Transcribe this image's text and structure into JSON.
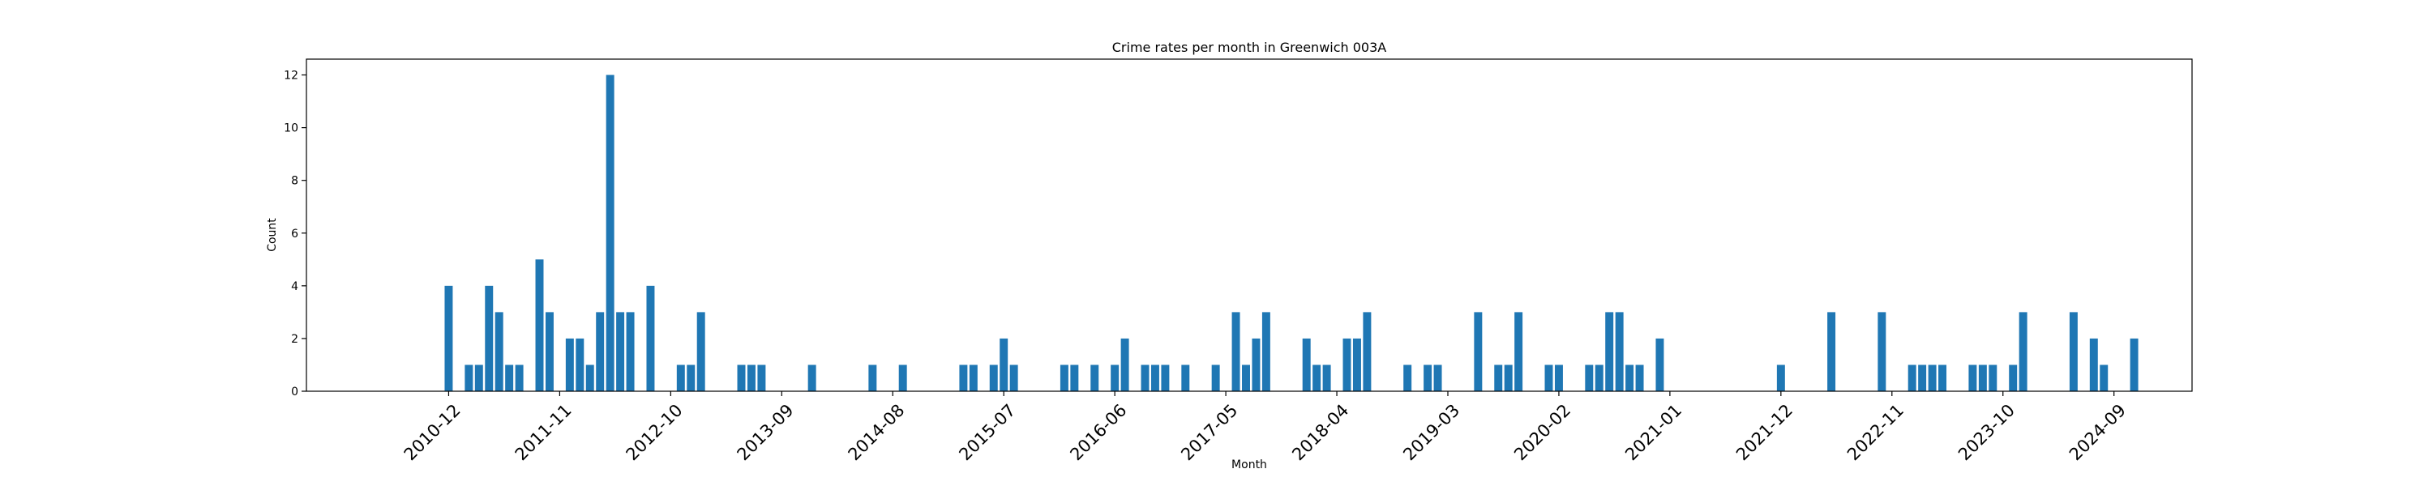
{
  "chart_data": {
    "type": "bar",
    "title": "Crime rates per month in Greenwich 003A",
    "xlabel": "Month",
    "ylabel": "Count",
    "ylim": [
      0,
      12.6
    ],
    "yticks": [
      0,
      2,
      4,
      6,
      8,
      10,
      12
    ],
    "xticks": [
      "2010-12",
      "2011-11",
      "2012-10",
      "2013-09",
      "2014-08",
      "2015-07",
      "2016-06",
      "2017-05",
      "2018-04",
      "2019-03",
      "2020-02",
      "2021-01",
      "2021-12",
      "2022-11",
      "2023-10",
      "2024-09"
    ],
    "bar_color": "#1f77b4",
    "grid": false,
    "series": [
      {
        "x": [
          "2010-12",
          "2011-02",
          "2011-03",
          "2011-04",
          "2011-05",
          "2011-06",
          "2011-07",
          "2011-09",
          "2011-10",
          "2011-12",
          "2012-01",
          "2012-02",
          "2012-03",
          "2012-04",
          "2012-05",
          "2012-06",
          "2012-08",
          "2012-11",
          "2012-12",
          "2013-01",
          "2013-05",
          "2013-06",
          "2013-07",
          "2013-12",
          "2014-06",
          "2014-09",
          "2015-03",
          "2015-04",
          "2015-06",
          "2015-07",
          "2015-08",
          "2016-01",
          "2016-02",
          "2016-04",
          "2016-06",
          "2016-07",
          "2016-09",
          "2016-10",
          "2016-11",
          "2017-01",
          "2017-04",
          "2017-06",
          "2017-07",
          "2017-08",
          "2017-09",
          "2018-01",
          "2018-02",
          "2018-03",
          "2018-05",
          "2018-06",
          "2018-07",
          "2018-11",
          "2019-01",
          "2019-02",
          "2019-06",
          "2019-08",
          "2019-09",
          "2019-10",
          "2020-01",
          "2020-02",
          "2020-05",
          "2020-06",
          "2020-07",
          "2020-08",
          "2020-09",
          "2020-10",
          "2020-12",
          "2021-12",
          "2022-05",
          "2022-10",
          "2023-01",
          "2023-02",
          "2023-03",
          "2023-04",
          "2023-07",
          "2023-08",
          "2023-09",
          "2023-11",
          "2023-12",
          "2024-05",
          "2024-07",
          "2024-08",
          "2024-11"
        ],
        "values": [
          4,
          1,
          1,
          4,
          3,
          1,
          1,
          5,
          3,
          2,
          2,
          1,
          3,
          12,
          3,
          3,
          4,
          1,
          1,
          3,
          1,
          1,
          1,
          1,
          1,
          1,
          1,
          1,
          1,
          2,
          1,
          1,
          1,
          1,
          1,
          2,
          1,
          1,
          1,
          1,
          1,
          3,
          1,
          2,
          3,
          2,
          1,
          1,
          2,
          2,
          3,
          1,
          1,
          1,
          3,
          1,
          1,
          3,
          1,
          1,
          1,
          1,
          3,
          3,
          1,
          1,
          2,
          1,
          3,
          3,
          1,
          1,
          1,
          1,
          1,
          1,
          1,
          1,
          3,
          3,
          2,
          1,
          2
        ]
      }
    ]
  }
}
